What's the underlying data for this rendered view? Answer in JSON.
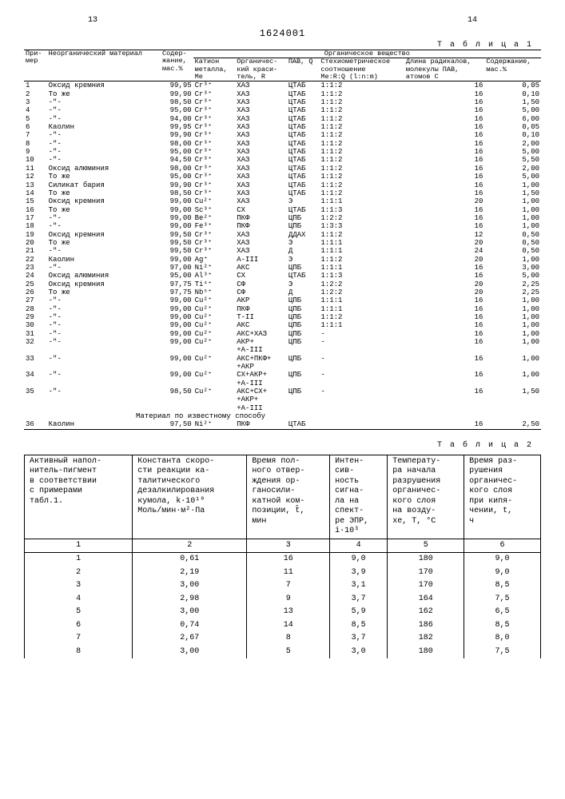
{
  "page_left": "13",
  "doc_number": "1624001",
  "page_right": "14",
  "table1_label": "Т а б л и ц а 1",
  "table2_label": "Т а б л и ц а 2",
  "t1": {
    "head": {
      "c1": "При-\nмер",
      "c2": "Неорганический материал",
      "c3": "Содер-\nжание,\nмас.%",
      "grp": "Органическое вещество",
      "c4": "Катион\nметалла,\nMe",
      "c5": "Органичес-\nкий краси-\nтель, R",
      "c6": "ПАВ, Q",
      "c7": "Стехиометрическое\nсоотношение\nMe:R:Q (l:n:m)",
      "c8": "Длина радикалов,\nмолекулы ПАВ,\nатомов C",
      "c9": "Содержание,\nмас.%"
    },
    "rows": [
      [
        "1",
        "Оксид кремния",
        "99,95",
        "Cr³⁺",
        "ХАЗ",
        "ЦТАБ",
        "1:1:2",
        "16",
        "0,05"
      ],
      [
        "2",
        "То же",
        "99,90",
        "Cr³⁺",
        "ХАЗ",
        "ЦТАБ",
        "1:1:2",
        "16",
        "0,10"
      ],
      [
        "3",
        "-\"-",
        "98,50",
        "Cr³⁺",
        "ХАЗ",
        "ЦТАБ",
        "1:1:2",
        "16",
        "1,50"
      ],
      [
        "4",
        "-\"-",
        "95,00",
        "Cr³⁺",
        "ХАЗ",
        "ЦТАБ",
        "1:1:2",
        "16",
        "5,00"
      ],
      [
        "5",
        "-\"-",
        "94,00",
        "Cr³⁺",
        "ХАЗ",
        "ЦТАБ",
        "1:1:2",
        "16",
        "6,00"
      ],
      [
        "6",
        "Каолин",
        "99,95",
        "Cr³⁺",
        "ХАЗ",
        "ЦТАБ",
        "1:1:2",
        "16",
        "0,05"
      ],
      [
        "7",
        "-\"-",
        "99,90",
        "Cr³⁺",
        "ХАЗ",
        "ЦТАБ",
        "1:1:2",
        "16",
        "0,10"
      ],
      [
        "8",
        "-\"-",
        "98,00",
        "Cr³⁺",
        "ХАЗ",
        "ЦТАБ",
        "1:1:2",
        "16",
        "2,00"
      ],
      [
        "9",
        "-\"-",
        "95,00",
        "Cr³⁺",
        "ХАЗ",
        "ЦТАБ",
        "1:1:2",
        "16",
        "5,00"
      ],
      [
        "10",
        "-\"-",
        "94,50",
        "Cr³⁺",
        "ХАЗ",
        "ЦТАБ",
        "1:1:2",
        "16",
        "5,50"
      ],
      [
        "11",
        "Оксид алюминия",
        "98,00",
        "Cr³⁺",
        "ХАЗ",
        "ЦТАБ",
        "1:1:2",
        "16",
        "2,00"
      ],
      [
        "12",
        "То же",
        "95,00",
        "Cr³⁺",
        "ХАЗ",
        "ЦТАБ",
        "1:1:2",
        "16",
        "5,00"
      ],
      [
        "13",
        "Силикат бария",
        "99,90",
        "Cr³⁺",
        "ХАЗ",
        "ЦТАБ",
        "1:1:2",
        "16",
        "1,00"
      ],
      [
        "14",
        "То же",
        "98,50",
        "Cr³⁺",
        "ХАЗ",
        "ЦТАБ",
        "1:1:2",
        "16",
        "1,50"
      ],
      [
        "15",
        "Оксид кремния",
        "99,00",
        "Cu²⁺",
        "ХАЗ",
        "Э",
        "1:1:1",
        "20",
        "1,00"
      ],
      [
        "16",
        "То же",
        "99,00",
        "Sc³⁺",
        "СХ",
        "ЦТАБ",
        "1:1:3",
        "16",
        "1,00"
      ],
      [
        "17",
        "-\"-",
        "99,00",
        "Be²⁺",
        "ПКФ",
        "ЦПБ",
        "1:2:2",
        "16",
        "1,00"
      ],
      [
        "18",
        "-\"-",
        "99,00",
        "Fe³⁺",
        "ПКФ",
        "ЦПБ",
        "1:3:3",
        "16",
        "1,00"
      ],
      [
        "19",
        "Оксид кремния",
        "99,50",
        "Cr³⁺",
        "ХАЗ",
        "ДДАХ",
        "1:1:2",
        "12",
        "0,50"
      ],
      [
        "20",
        "То же",
        "99,50",
        "Cr³⁺",
        "ХАЗ",
        "Э",
        "1:1:1",
        "20",
        "0,50"
      ],
      [
        "21",
        "-\"-",
        "99,50",
        "Cr³⁺",
        "ХАЗ",
        "Д",
        "1:1:1",
        "24",
        "0,50"
      ],
      [
        "22",
        "Каолин",
        "99,00",
        "Ag⁺",
        "А-III",
        "Э",
        "1:1:2",
        "20",
        "1,00"
      ],
      [
        "23",
        "-\"-",
        "97,00",
        "Ni²⁺",
        "АКС",
        "ЦПБ",
        "1:1:1",
        "16",
        "3,00"
      ],
      [
        "24",
        "Оксид алюминия",
        "95,00",
        "Al³⁺",
        "СХ",
        "ЦТАБ",
        "1:1:3",
        "16",
        "5,00"
      ],
      [
        "25",
        "Оксид кремния",
        "97,75",
        "Ti⁴⁺",
        "СФ",
        "Э",
        "1:2:2",
        "20",
        "2,25"
      ],
      [
        "26",
        "То же",
        "97,75",
        "Nb⁵⁺",
        "СФ",
        "Д",
        "1:2:2",
        "20",
        "2,25"
      ],
      [
        "27",
        "-\"-",
        "99,00",
        "Cu²⁺",
        "АКР",
        "ЦПБ",
        "1:1:1",
        "16",
        "1,00"
      ],
      [
        "28",
        "-\"-",
        "99,00",
        "Cu²⁺",
        "ПКФ",
        "ЦПБ",
        "1:1:1",
        "16",
        "1,00"
      ],
      [
        "29",
        "-\"-",
        "99,00",
        "Cu²⁺",
        "Т-II",
        "ЦПБ",
        "1:1:2",
        "16",
        "1,00"
      ],
      [
        "30",
        "-\"-",
        "99,00",
        "Cu²⁺",
        "АКС",
        "ЦПБ",
        "1:1:1",
        "16",
        "1,00"
      ],
      [
        "31",
        "-\"-",
        "99,00",
        "Cu²⁺",
        "АКС+ХАЗ",
        "ЦПБ",
        "-",
        "16",
        "1,00"
      ],
      [
        "32",
        "-\"-",
        "99,00",
        "Cu²⁺",
        "АКР+\n+А-III",
        "ЦПБ",
        "-",
        "16",
        "1,00"
      ],
      [
        "33",
        "-\"-",
        "99,00",
        "Cu²⁺",
        "АКС+ПКФ+\n+АКР",
        "ЦПБ",
        "-",
        "16",
        "1,00"
      ],
      [
        "34",
        "-\"-",
        "99,00",
        "Cu²⁺",
        "СХ+АКР+\n+А-III",
        "ЦПБ",
        "-",
        "16",
        "1,00"
      ],
      [
        "35",
        "-\"-",
        "98,50",
        "Cu²⁺",
        "АКС+СХ+\n+АКР+\n+А-III",
        "ЦПБ",
        "-",
        "16",
        "1,50"
      ]
    ],
    "note": "Материал по известному способу",
    "last": [
      "36",
      "Каолин",
      "97,50",
      "Ni²⁺",
      "ПКФ",
      "ЦТАБ",
      "",
      "16",
      "2,50"
    ]
  },
  "t2": {
    "head": [
      "Активный напол-\nнитель-пигмент\nв соответствии\nс примерами\nтабл.1.",
      "Константа скоро-\nсти реакции ка-\nталитического\nдезалкилирования\nкумола, k·10¹⁰\nМоль/мин·м²·Па",
      "Время пол-\nного отвер-\nждения ор-\nганосили-\nкатной ком-\nпозиции, t̂,\nмин",
      "Интен-\nсив-\nность\nсигна-\nла на\nспект-\nре ЭПР,\ni·10³",
      "Температу-\nра начала\nразрушения\nорганичес-\nкого слоя\nна возду-\nхе, T, °C",
      "Время раз-\nрушения\nорганичес-\nкого слоя\nпри кипя-\nчении, t,\nч"
    ],
    "nums": [
      "1",
      "2",
      "3",
      "4",
      "5",
      "6"
    ],
    "rows": [
      [
        "1",
        "0,61",
        "16",
        "9,0",
        "180",
        "9,0"
      ],
      [
        "2",
        "2,19",
        "11",
        "3,9",
        "170",
        "9,0"
      ],
      [
        "3",
        "3,00",
        "7",
        "3,1",
        "170",
        "8,5"
      ],
      [
        "4",
        "2,98",
        "9",
        "3,7",
        "164",
        "7,5"
      ],
      [
        "5",
        "3,00",
        "13",
        "5,9",
        "162",
        "6,5"
      ],
      [
        "6",
        "0,74",
        "14",
        "8,5",
        "186",
        "8,5"
      ],
      [
        "7",
        "2,67",
        "8",
        "3,7",
        "182",
        "8,0"
      ],
      [
        "8",
        "3,00",
        "5",
        "3,0",
        "180",
        "7,5"
      ]
    ]
  }
}
